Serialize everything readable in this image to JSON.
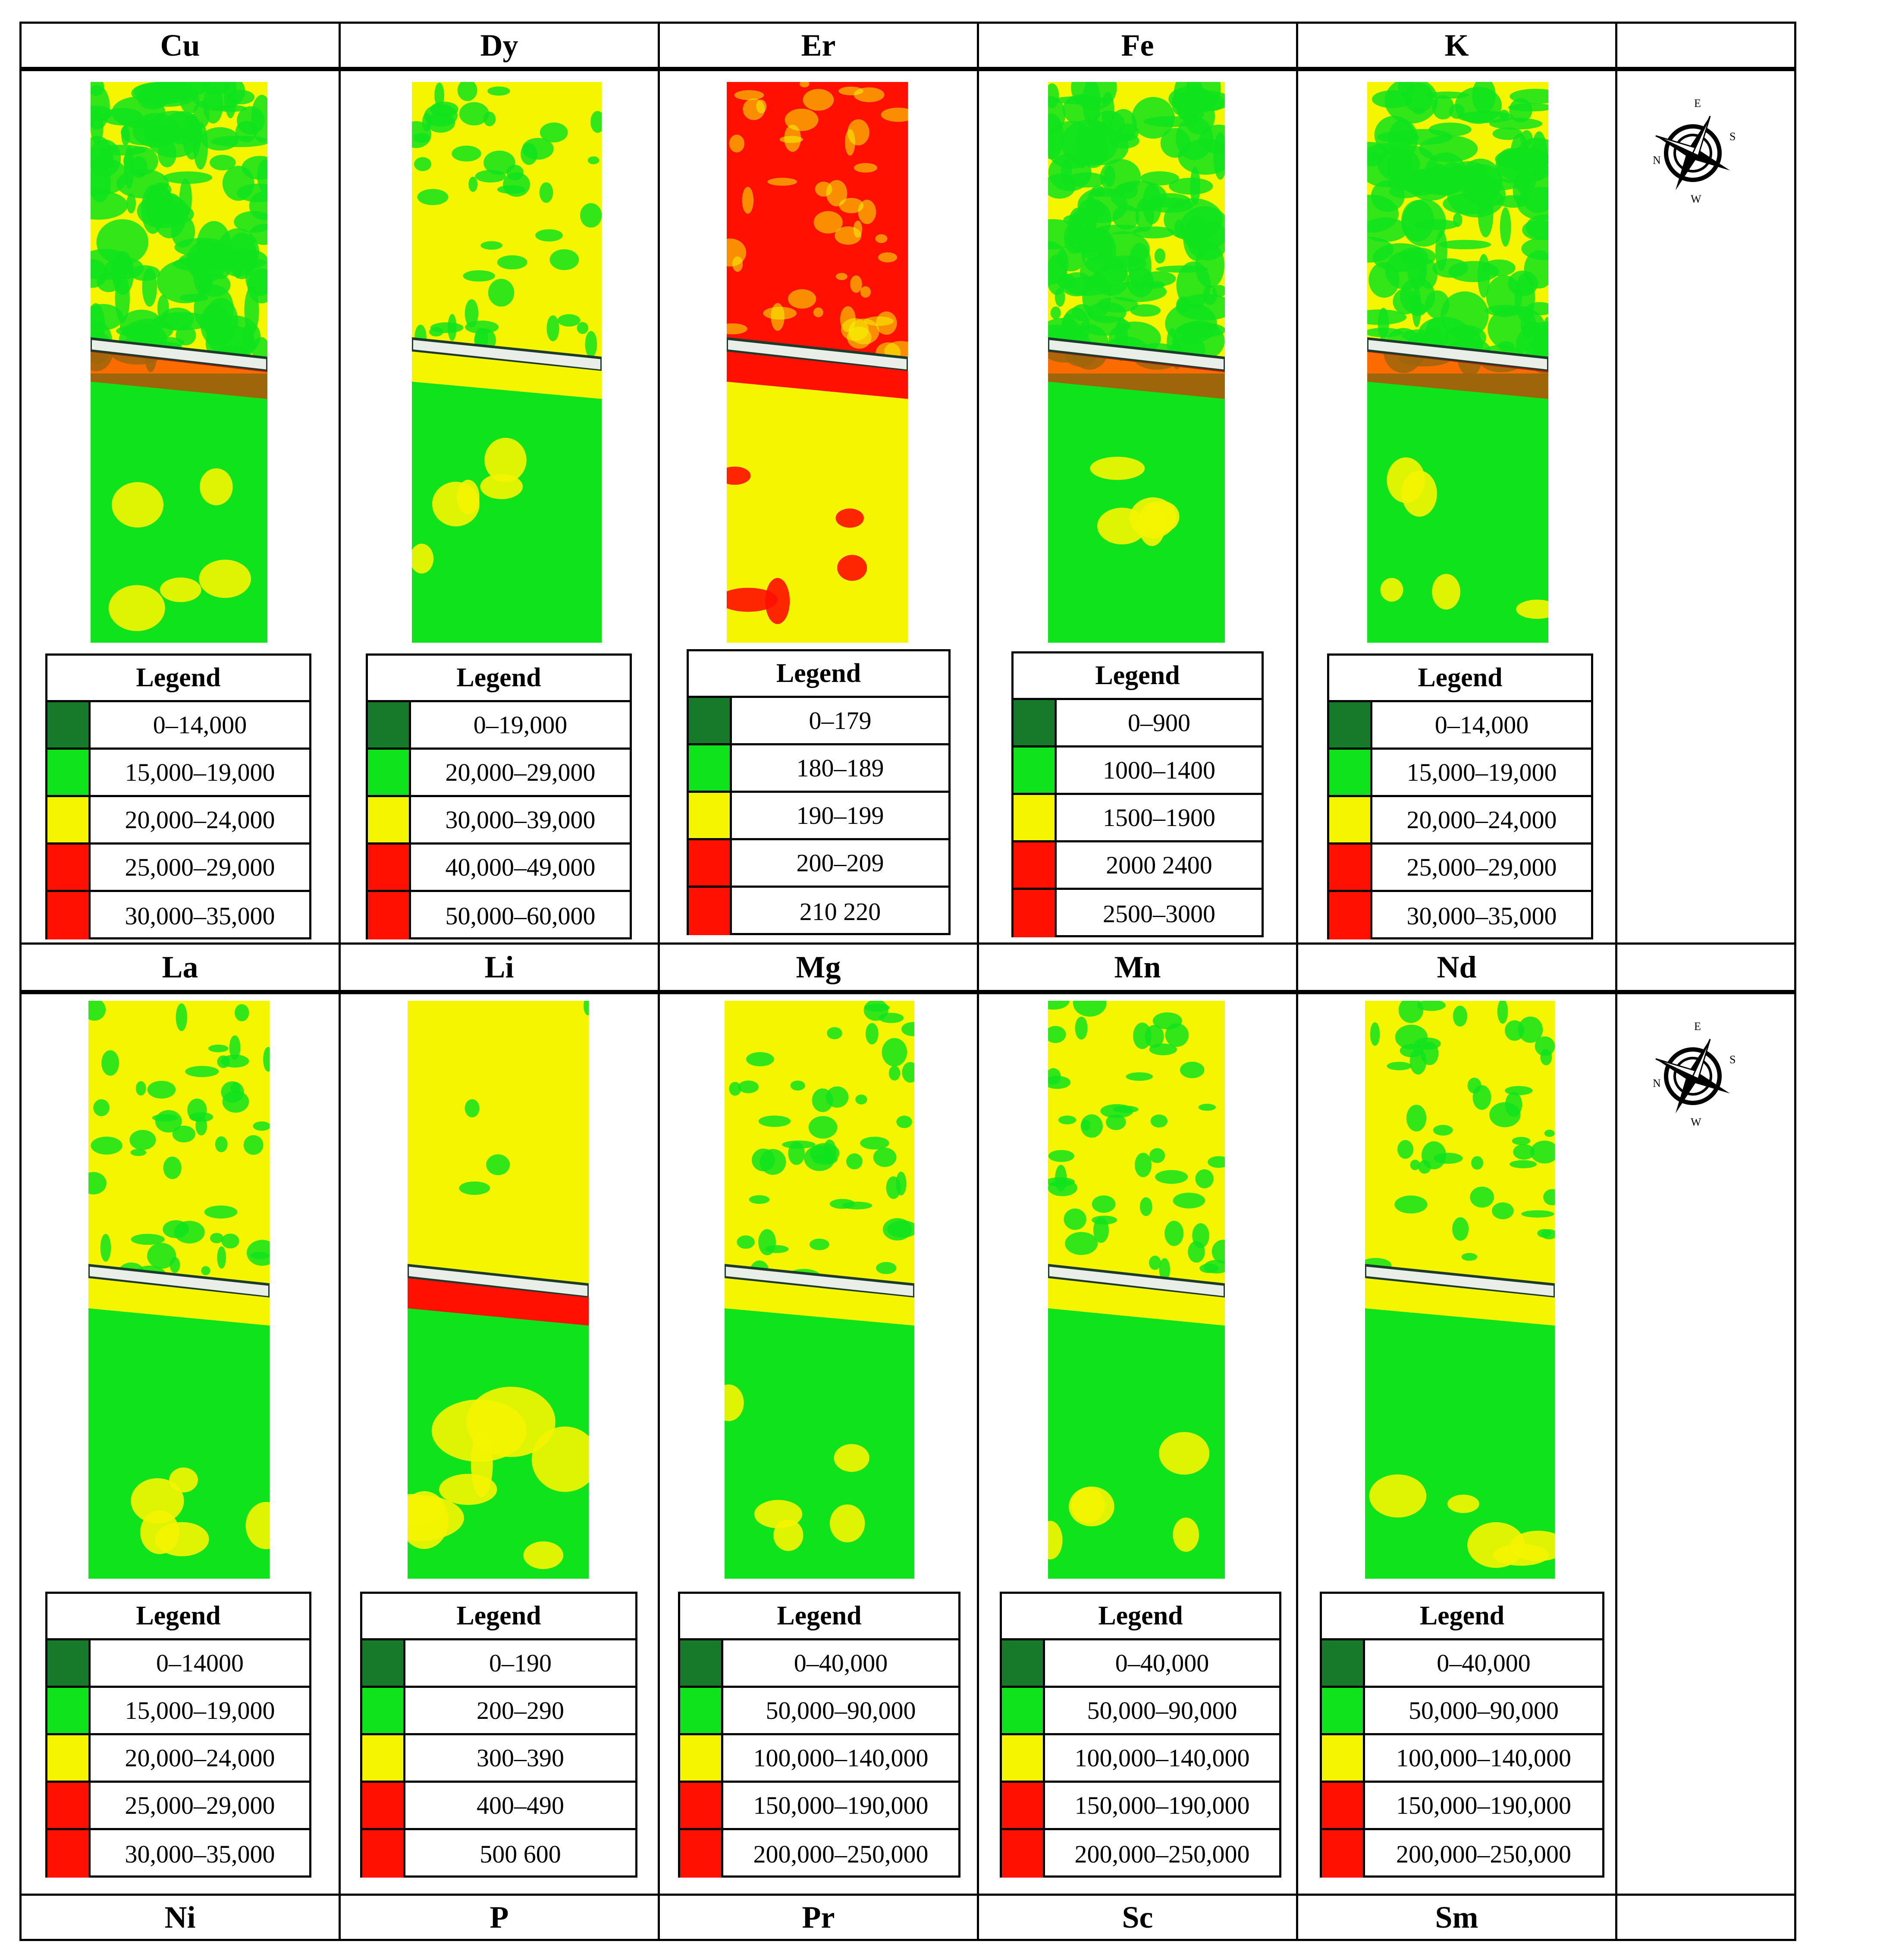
{
  "colors": {
    "dark_green": "#177a2a",
    "green": "#0fe31c",
    "yellow": "#f5f500",
    "red": "#ff1000"
  },
  "header_labels": [
    "Cu",
    "Dy",
    "Er",
    "Fe",
    "K",
    ""
  ],
  "middle_labels": [
    "La",
    "Li",
    "Mg",
    "Mn",
    "Nd",
    ""
  ],
  "bottom_labels": [
    "Ni",
    "P",
    "Pr",
    "Sc",
    "Sm",
    ""
  ],
  "legend_title": "Legend",
  "compass_letters": {
    "n": "N",
    "e": "E",
    "s": "S",
    "w": "W"
  },
  "top_legends": [
    [
      "0–14,000",
      "15,000–19,000",
      "20,000–24,000",
      "25,000–29,000",
      "30,000–35,000"
    ],
    [
      "0–19,000",
      "20,000–29,000",
      "30,000–39,000",
      "40,000–49,000",
      "50,000–60,000"
    ],
    [
      "0–179",
      "180–189",
      "190–199",
      "200–209",
      "210 220"
    ],
    [
      "0–900",
      "1000–1400",
      "1500–1900",
      "2000 2400",
      "2500–3000"
    ],
    [
      "0–14,000",
      "15,000–19,000",
      "20,000–24,000",
      "25,000–29,000",
      "30,000–35,000"
    ]
  ],
  "bottom_legends": [
    [
      "0–14000",
      "15,000–19,000",
      "20,000–24,000",
      "25,000–29,000",
      "30,000–35,000"
    ],
    [
      "0–190",
      "200–290",
      "300–390",
      "400–490",
      "500 600"
    ],
    [
      "0–40,000",
      "50,000–90,000",
      "100,000–140,000",
      "150,000–190,000",
      "200,000–250,000"
    ],
    [
      "0–40,000",
      "50,000–90,000",
      "100,000–140,000",
      "150,000–190,000",
      "200,000–250,000"
    ],
    [
      "0–40,000",
      "50,000–90,000",
      "100,000–140,000",
      "150,000–190,000",
      "200,000–250,000"
    ]
  ]
}
